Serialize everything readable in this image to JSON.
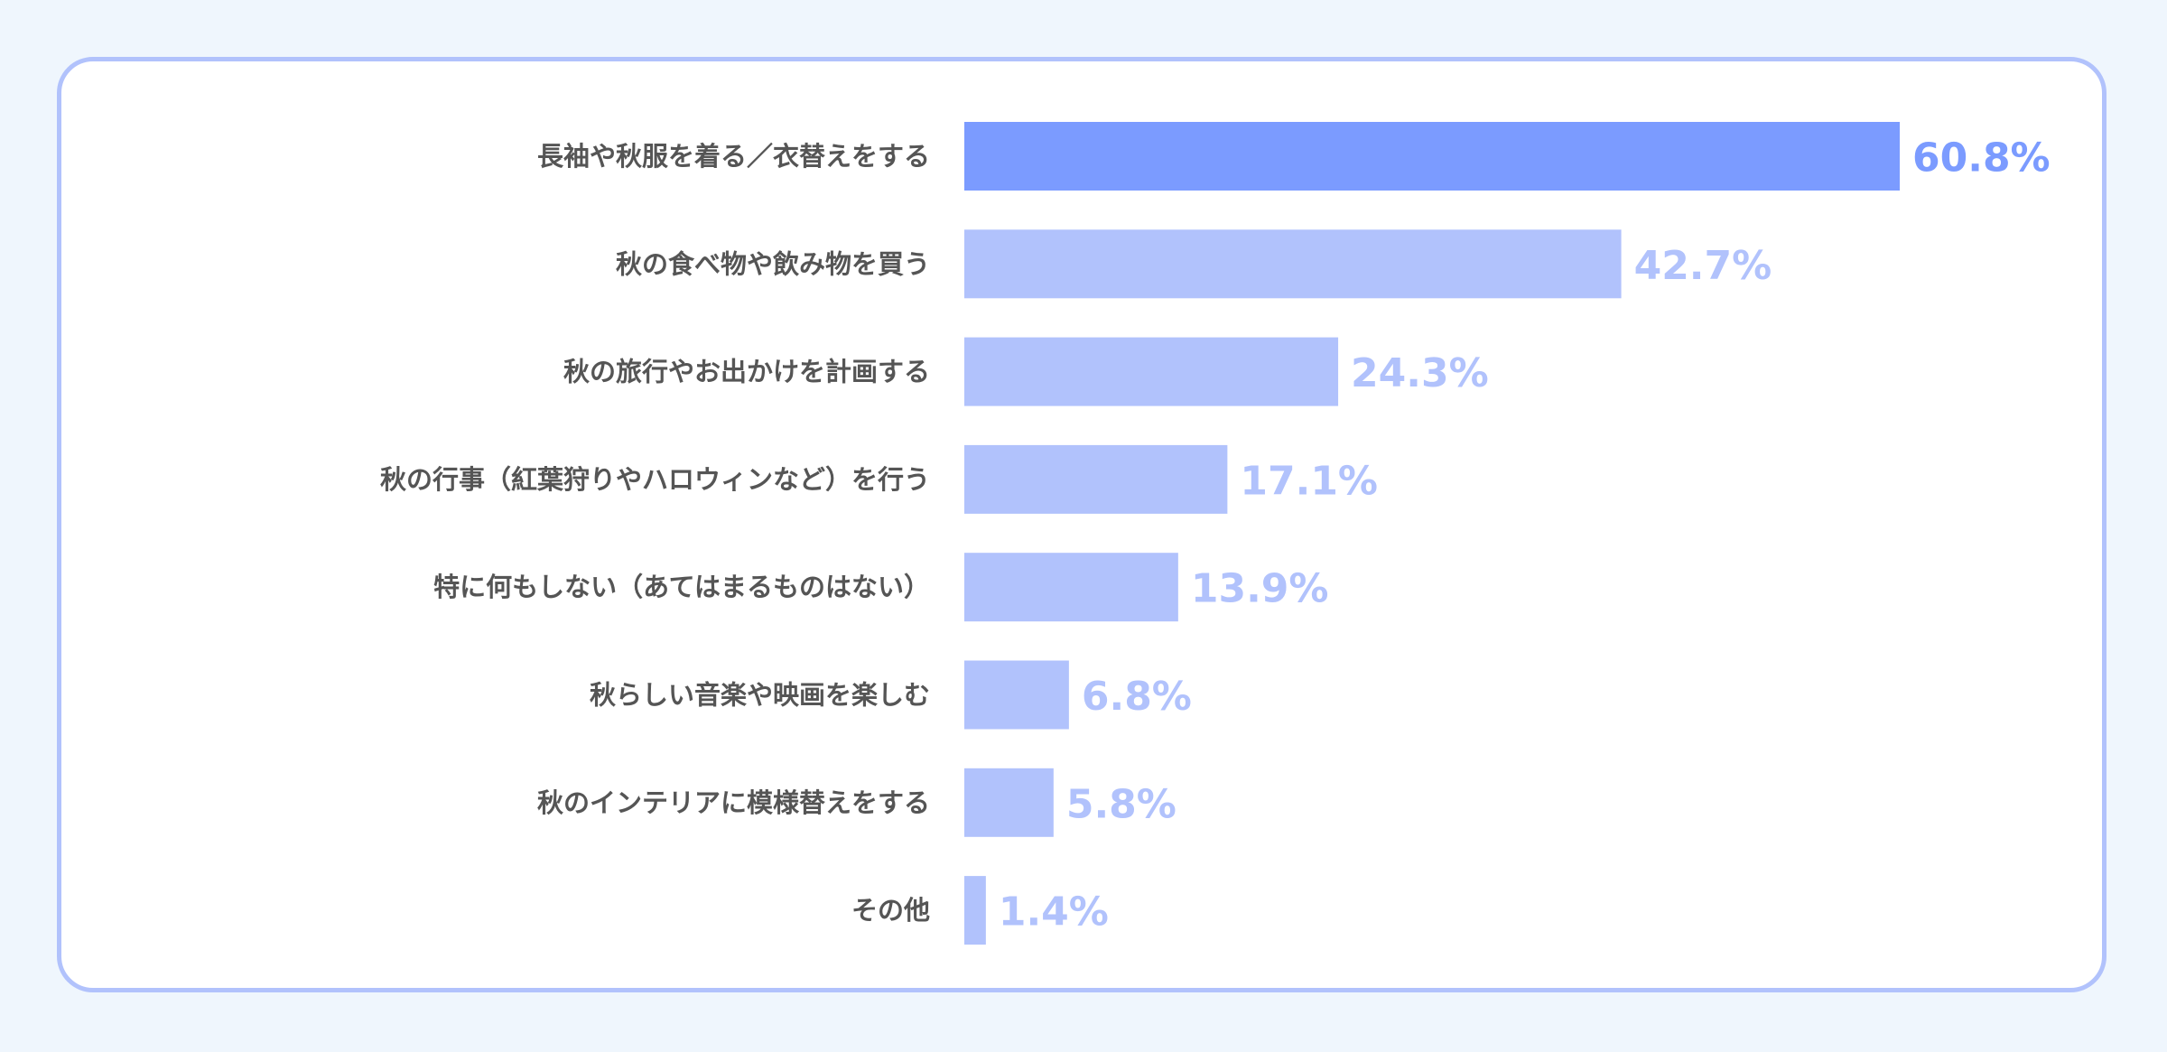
{
  "chart_data": {
    "type": "bar",
    "orientation": "horizontal",
    "categories": [
      "長袖や秋服を着る／衣替えをする",
      "秋の食べ物や飲み物を買う",
      "秋の旅行やお出かけを計画する",
      "秋の行事（紅葉狩りやハロウィンなど）を行う",
      "特に何もしない（あてはまるものはない）",
      "秋らしい音楽や映画を楽しむ",
      "秋のインテリアに模様替えをする",
      "その他"
    ],
    "values": [
      60.8,
      42.7,
      24.3,
      17.1,
      13.9,
      6.8,
      5.8,
      1.4
    ],
    "value_labels": [
      "60.8%",
      "42.7%",
      "24.3%",
      "17.1%",
      "13.9%",
      "6.8%",
      "5.8%",
      "1.4%"
    ],
    "unit": "%",
    "title": "",
    "xlabel": "",
    "ylabel": "",
    "xlim": [
      0,
      60.8
    ],
    "grid": false,
    "legend": "none",
    "colors": {
      "highlight_bar": "#7b9bff",
      "bar": "#b1c2fc",
      "highlight_label": "#7b9bff",
      "label": "#b1c2fc",
      "category_text": "#555555",
      "card_border": "#b1c2fc",
      "background": "#eff6fd"
    },
    "highlight_index": 0
  }
}
